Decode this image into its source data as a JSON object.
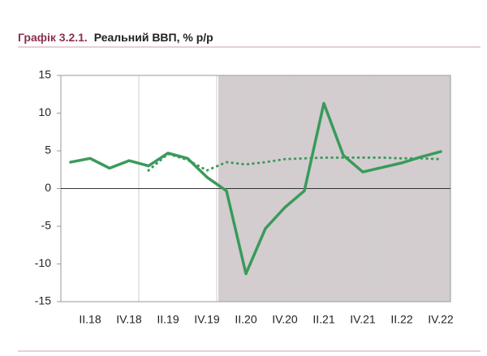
{
  "chart_data": {
    "type": "line",
    "title_prefix": "Графік 3.2.1.",
    "title": "Реальний ВВП, % р/р",
    "categories": [
      null,
      "II.18",
      null,
      "IV.18",
      null,
      "II.19",
      null,
      "IV.19",
      null,
      "II.20",
      null,
      "IV.20",
      null,
      "II.21",
      null,
      "IV.21",
      null,
      "II.22",
      null,
      "IV.22"
    ],
    "series": [
      {
        "color": "#3a9a5b",
        "style": "solid",
        "values": [
          3.5,
          4.0,
          2.7,
          3.7,
          3.0,
          4.7,
          4.0,
          1.5,
          -0.3,
          -11.3,
          -5.3,
          -2.5,
          -0.3,
          11.3,
          4.4,
          2.2,
          2.8,
          3.4,
          4.2,
          4.9
        ]
      },
      {
        "color": "#3a9a5b",
        "style": "dotted",
        "values": [
          null,
          null,
          null,
          null,
          2.4,
          4.6,
          3.8,
          2.4,
          3.5,
          3.2,
          3.5,
          3.9,
          4.0,
          4.1,
          4.1,
          4.1,
          4.1,
          4.0,
          4.0,
          3.9
        ]
      }
    ],
    "ylim": [
      -15,
      15
    ],
    "yticks": [
      -15,
      -10,
      -5,
      0,
      5,
      10,
      15
    ],
    "grid": "x"
  }
}
